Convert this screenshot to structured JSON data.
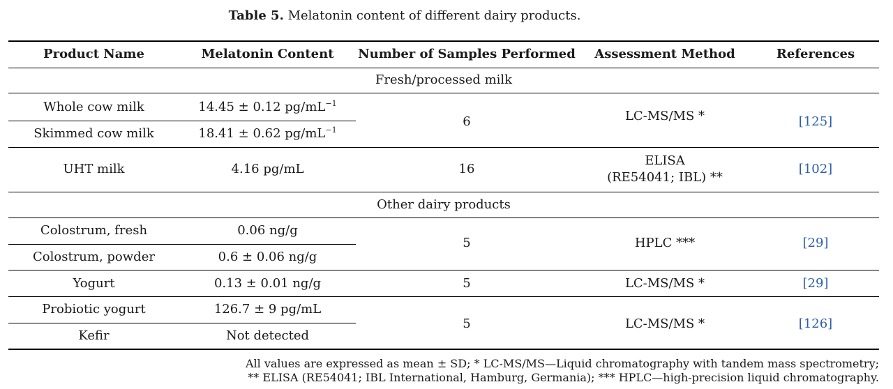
{
  "caption": {
    "label": "Table 5.",
    "text": "Melatonin content of different dairy products."
  },
  "headers": [
    "Product Name",
    "Melatonin Content",
    "Number of Samples Performed",
    "Assessment Method",
    "References"
  ],
  "groups": [
    {
      "title": "Fresh/processed milk"
    },
    {
      "title": "Other dairy products"
    }
  ],
  "rows": {
    "whole_cow": {
      "product": "Whole cow milk",
      "content": "14.45 ± 0.12 pg/mL",
      "content_sup": "−1"
    },
    "skimmed_cow": {
      "product": "Skimmed cow milk",
      "content": "18.41 ± 0.62 pg/mL",
      "content_sup": "−1"
    },
    "milk_samples": "6",
    "milk_method": "LC-MS/MS *",
    "milk_ref": "[125]",
    "uht": {
      "product": "UHT milk",
      "content": "4.16 pg/mL",
      "samples": "16",
      "method_line1": "ELISA",
      "method_line2": "(RE54041; IBL) **",
      "ref": "[102]"
    },
    "colostrum_fresh": {
      "product": "Colostrum, fresh",
      "content": "0.06 ng/g"
    },
    "colostrum_powder": {
      "product": "Colostrum, powder",
      "content": "0.6 ± 0.06 ng/g"
    },
    "colostrum_samples": "5",
    "colostrum_method": "HPLC ***",
    "colostrum_ref": "[29]",
    "yogurt": {
      "product": "Yogurt",
      "content": "0.13 ± 0.01 ng/g",
      "samples": "5",
      "method": "LC-MS/MS *",
      "ref": "[29]"
    },
    "probiotic": {
      "product": "Probiotic yogurt",
      "content": "126.7 ± 9 pg/mL"
    },
    "kefir": {
      "product": "Kefir",
      "content": "Not detected"
    },
    "pk_samples": "5",
    "pk_method": "LC-MS/MS *",
    "pk_ref": "[126]"
  },
  "footnote": {
    "line1": "All values are expressed as mean ± SD; * LC-MS/MS—Liquid chromatography with tandem mass spectrometry;",
    "line2": "** ELISA (RE54041; IBL International, Hamburg, Germania); *** HPLC—high-precision liquid chromatography."
  }
}
